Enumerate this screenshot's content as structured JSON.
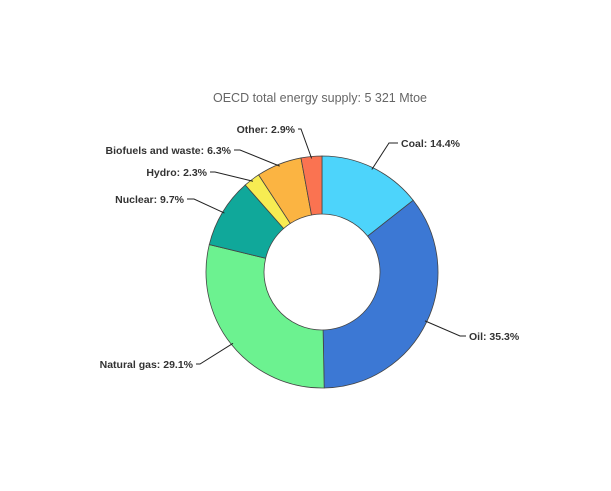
{
  "chart_data": {
    "type": "pie",
    "donut": true,
    "title": "OECD total energy supply: 5 321 Mtoe",
    "slices": [
      {
        "label": "Coal: 14.4%",
        "name": "Coal",
        "value": 14.4,
        "color": "#4dd4fb"
      },
      {
        "label": "Oil: 35.3%",
        "name": "Oil",
        "value": 35.3,
        "color": "#3c78d4"
      },
      {
        "label": "Natural gas: 29.1%",
        "name": "Natural gas",
        "value": 29.1,
        "color": "#6cf290"
      },
      {
        "label": "Nuclear: 9.7%",
        "name": "Nuclear",
        "value": 9.7,
        "color": "#10a89a"
      },
      {
        "label": "Hydro: 2.3%",
        "name": "Hydro",
        "value": 2.3,
        "color": "#f7ec52"
      },
      {
        "label": "Biofuels and waste: 6.3%",
        "name": "Biofuels and waste",
        "value": 6.3,
        "color": "#fbb442"
      },
      {
        "label": "Other: 2.9%",
        "name": "Other",
        "value": 2.9,
        "color": "#fa7351"
      }
    ]
  }
}
